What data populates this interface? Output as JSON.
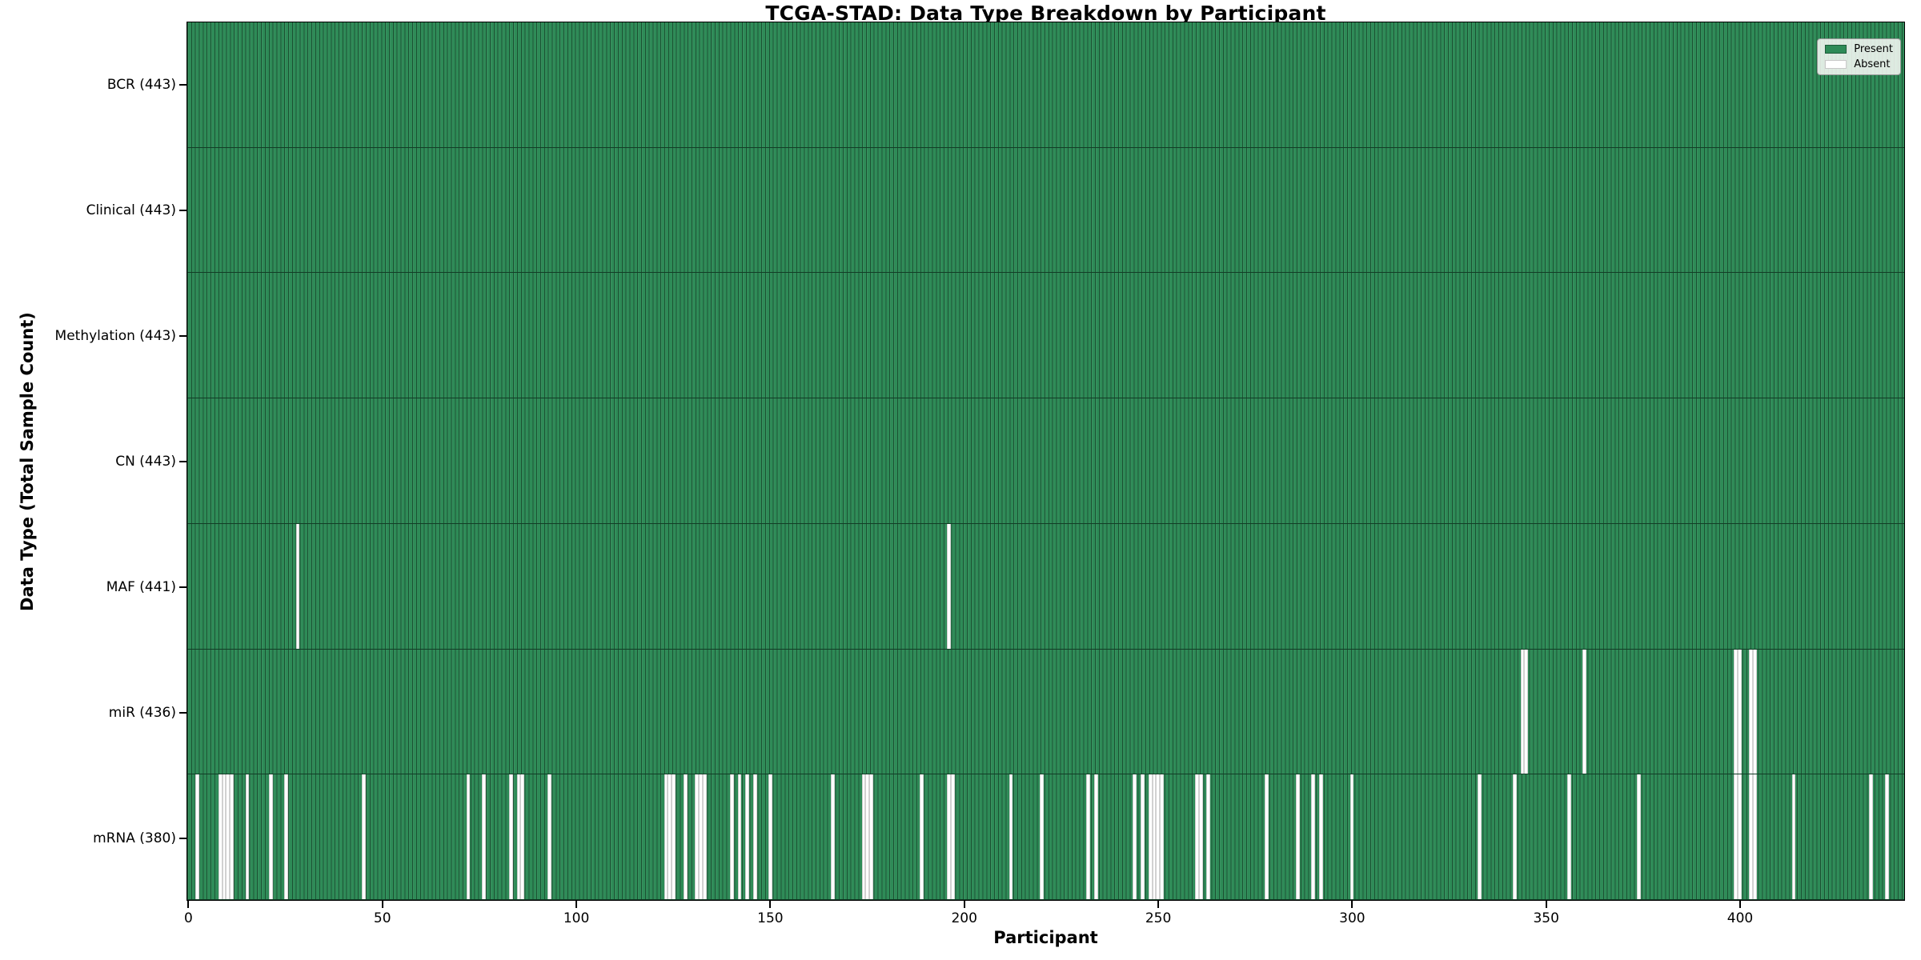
{
  "title": "TCGA-STAD: Data Type Breakdown by Participant",
  "xlabel": "Participant",
  "ylabel": "Data Type (Total Sample Count)",
  "legend": {
    "items": [
      {
        "label": "Present",
        "color": "#2e8b57"
      },
      {
        "label": "Absent",
        "color": "#ffffff"
      }
    ],
    "position": "upper right"
  },
  "colors": {
    "present": "#2e8b57",
    "absent": "#ffffff",
    "bar_edge": "#123d26",
    "plot_border": "#000000",
    "text": "#000000",
    "legend_bg": "#fcfcf9"
  },
  "chart_data": {
    "type": "heatmap",
    "title": "TCGA-STAD: Data Type Breakdown by Participant",
    "xlabel": "Participant",
    "ylabel": "Data Type (Total Sample Count)",
    "n_participants": 443,
    "x_range": [
      0,
      443
    ],
    "x_ticks": [
      0,
      50,
      100,
      150,
      200,
      250,
      300,
      350,
      400
    ],
    "legend_entries": [
      "Present",
      "Absent"
    ],
    "grid": false,
    "rows": [
      {
        "name": "BCR",
        "label": "BCR (443)",
        "present_count": 443,
        "absent_participants": []
      },
      {
        "name": "Clinical",
        "label": "Clinical (443)",
        "present_count": 443,
        "absent_participants": []
      },
      {
        "name": "Methylation",
        "label": "Methylation (443)",
        "present_count": 443,
        "absent_participants": []
      },
      {
        "name": "CN",
        "label": "CN (443)",
        "present_count": 443,
        "absent_participants": []
      },
      {
        "name": "MAF",
        "label": "MAF (441)",
        "present_count": 441,
        "absent_participants": [
          28,
          196
        ]
      },
      {
        "name": "miR",
        "label": "miR (436)",
        "present_count": 436,
        "absent_participants": [
          344,
          345,
          360,
          399,
          400,
          403,
          404
        ]
      },
      {
        "name": "mRNA",
        "label": "mRNA (380)",
        "present_count": 380,
        "absent_participants": [
          2,
          8,
          9,
          10,
          11,
          15,
          21,
          25,
          45,
          72,
          76,
          83,
          85,
          86,
          93,
          123,
          124,
          125,
          128,
          131,
          132,
          133,
          140,
          142,
          144,
          146,
          150,
          166,
          174,
          175,
          176,
          189,
          196,
          197,
          212,
          220,
          232,
          234,
          244,
          246,
          248,
          249,
          250,
          251,
          260,
          261,
          263,
          278,
          286,
          290,
          292,
          300,
          333,
          342,
          356,
          374,
          399,
          400,
          403,
          404,
          414,
          434,
          438
        ]
      }
    ]
  }
}
